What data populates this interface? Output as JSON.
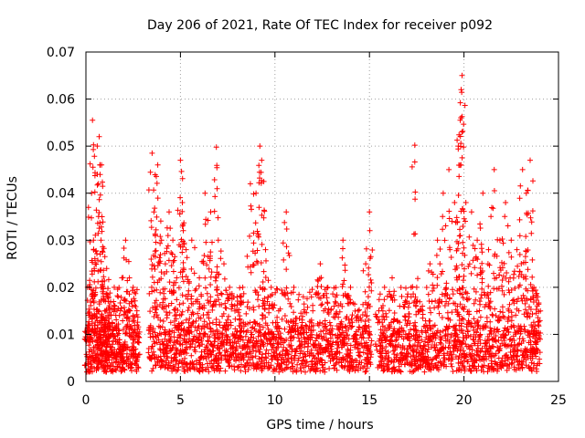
{
  "chart_data": {
    "type": "scatter",
    "title": "Day 206 of 2021, Rate Of TEC Index for receiver p092",
    "xlabel": "GPS time / hours",
    "ylabel": "ROTI / TECUs",
    "xlim": [
      0,
      25
    ],
    "ylim": [
      0,
      0.07
    ],
    "xticks": [
      0,
      5,
      10,
      15,
      20,
      25
    ],
    "yticks": [
      0,
      0.01,
      0.02,
      0.03,
      0.04,
      0.05,
      0.06,
      0.07
    ],
    "xtick_labels": [
      "0",
      "5",
      "10",
      "15",
      "20",
      "25"
    ],
    "ytick_labels": [
      "0",
      "0.01",
      "0.02",
      "0.03",
      "0.04",
      "0.05",
      "0.06",
      "0.07"
    ],
    "grid": true,
    "marker": "+",
    "color": "#ff0000",
    "series": [
      {
        "name": "ROTI",
        "x": [
          0.1,
          0.2,
          0.3,
          0.35,
          0.4,
          0.5,
          0.6,
          0.7,
          0.75,
          0.8,
          0.85,
          0.9,
          1.0,
          1.1,
          1.2,
          1.3,
          1.5,
          1.7,
          1.9,
          2.1,
          2.3,
          2.5,
          2.7,
          3.5,
          3.6,
          3.8,
          4.0,
          4.2,
          4.4,
          4.6,
          4.8,
          5.0,
          5.1,
          5.3,
          5.6,
          6.0,
          6.3,
          6.6,
          6.9,
          7.0,
          7.3,
          7.6,
          8.0,
          8.3,
          8.7,
          9.0,
          9.2,
          9.3,
          9.5,
          9.8,
          10.2,
          10.6,
          11.0,
          11.5,
          12.0,
          12.4,
          12.8,
          13.2,
          13.6,
          14.0,
          14.4,
          14.8,
          15.0,
          15.5,
          15.8,
          16.2,
          16.6,
          17.0,
          17.4,
          17.5,
          17.8,
          18.2,
          18.6,
          18.9,
          19.2,
          19.5,
          19.7,
          19.8,
          19.85,
          19.9,
          20.1,
          20.4,
          20.7,
          21.0,
          21.3,
          21.6,
          21.9,
          22.2,
          22.5,
          22.8,
          23.1,
          23.3,
          23.5,
          23.7,
          23.9
        ],
        "y": [
          0.012,
          0.02,
          0.04,
          0.0555,
          0.03,
          0.025,
          0.05,
          0.052,
          0.046,
          0.03,
          0.035,
          0.02,
          0.015,
          0.024,
          0.018,
          0.012,
          0.02,
          0.018,
          0.022,
          0.03,
          0.022,
          0.02,
          0.015,
          0.0485,
          0.036,
          0.046,
          0.03,
          0.025,
          0.036,
          0.03,
          0.022,
          0.047,
          0.038,
          0.028,
          0.03,
          0.022,
          0.04,
          0.036,
          0.0498,
          0.03,
          0.025,
          0.02,
          0.018,
          0.02,
          0.042,
          0.04,
          0.05,
          0.047,
          0.028,
          0.02,
          0.015,
          0.036,
          0.02,
          0.018,
          0.015,
          0.025,
          0.02,
          0.018,
          0.03,
          0.02,
          0.015,
          0.025,
          0.036,
          0.015,
          0.02,
          0.022,
          0.016,
          0.018,
          0.0502,
          0.02,
          0.016,
          0.025,
          0.03,
          0.04,
          0.045,
          0.038,
          0.05,
          0.0555,
          0.062,
          0.065,
          0.038,
          0.036,
          0.03,
          0.04,
          0.028,
          0.045,
          0.03,
          0.038,
          0.03,
          0.028,
          0.045,
          0.04,
          0.047,
          0.02,
          0.018
        ],
        "baseline_range": [
          0.002,
          0.012
        ]
      }
    ]
  }
}
